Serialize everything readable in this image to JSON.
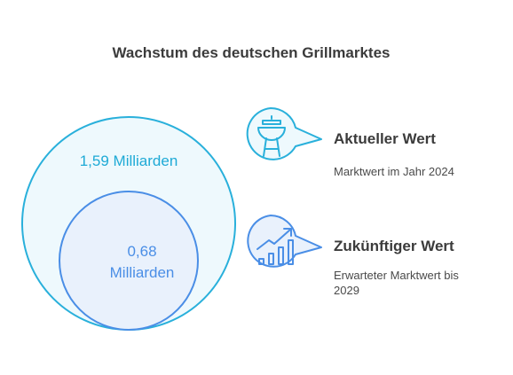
{
  "title": "Wachstum des deutschen Grillmarktes",
  "circles": {
    "outer": {
      "label": "1,59 Milliarden",
      "color": "#29b0db",
      "fill": "#eef9fd"
    },
    "inner": {
      "label_line1": "0,68",
      "label_line2": "Milliarden",
      "color": "#4a8ee6",
      "fill": "#e9f1fc"
    }
  },
  "items": [
    {
      "icon": "grill-icon",
      "title": "Aktueller Wert",
      "description": "Marktwert im Jahr 2024"
    },
    {
      "icon": "growth-chart-icon",
      "title": "Zukünftiger Wert",
      "description_line1": "Erwarteter Marktwert bis",
      "description_line2": "2029"
    }
  ]
}
